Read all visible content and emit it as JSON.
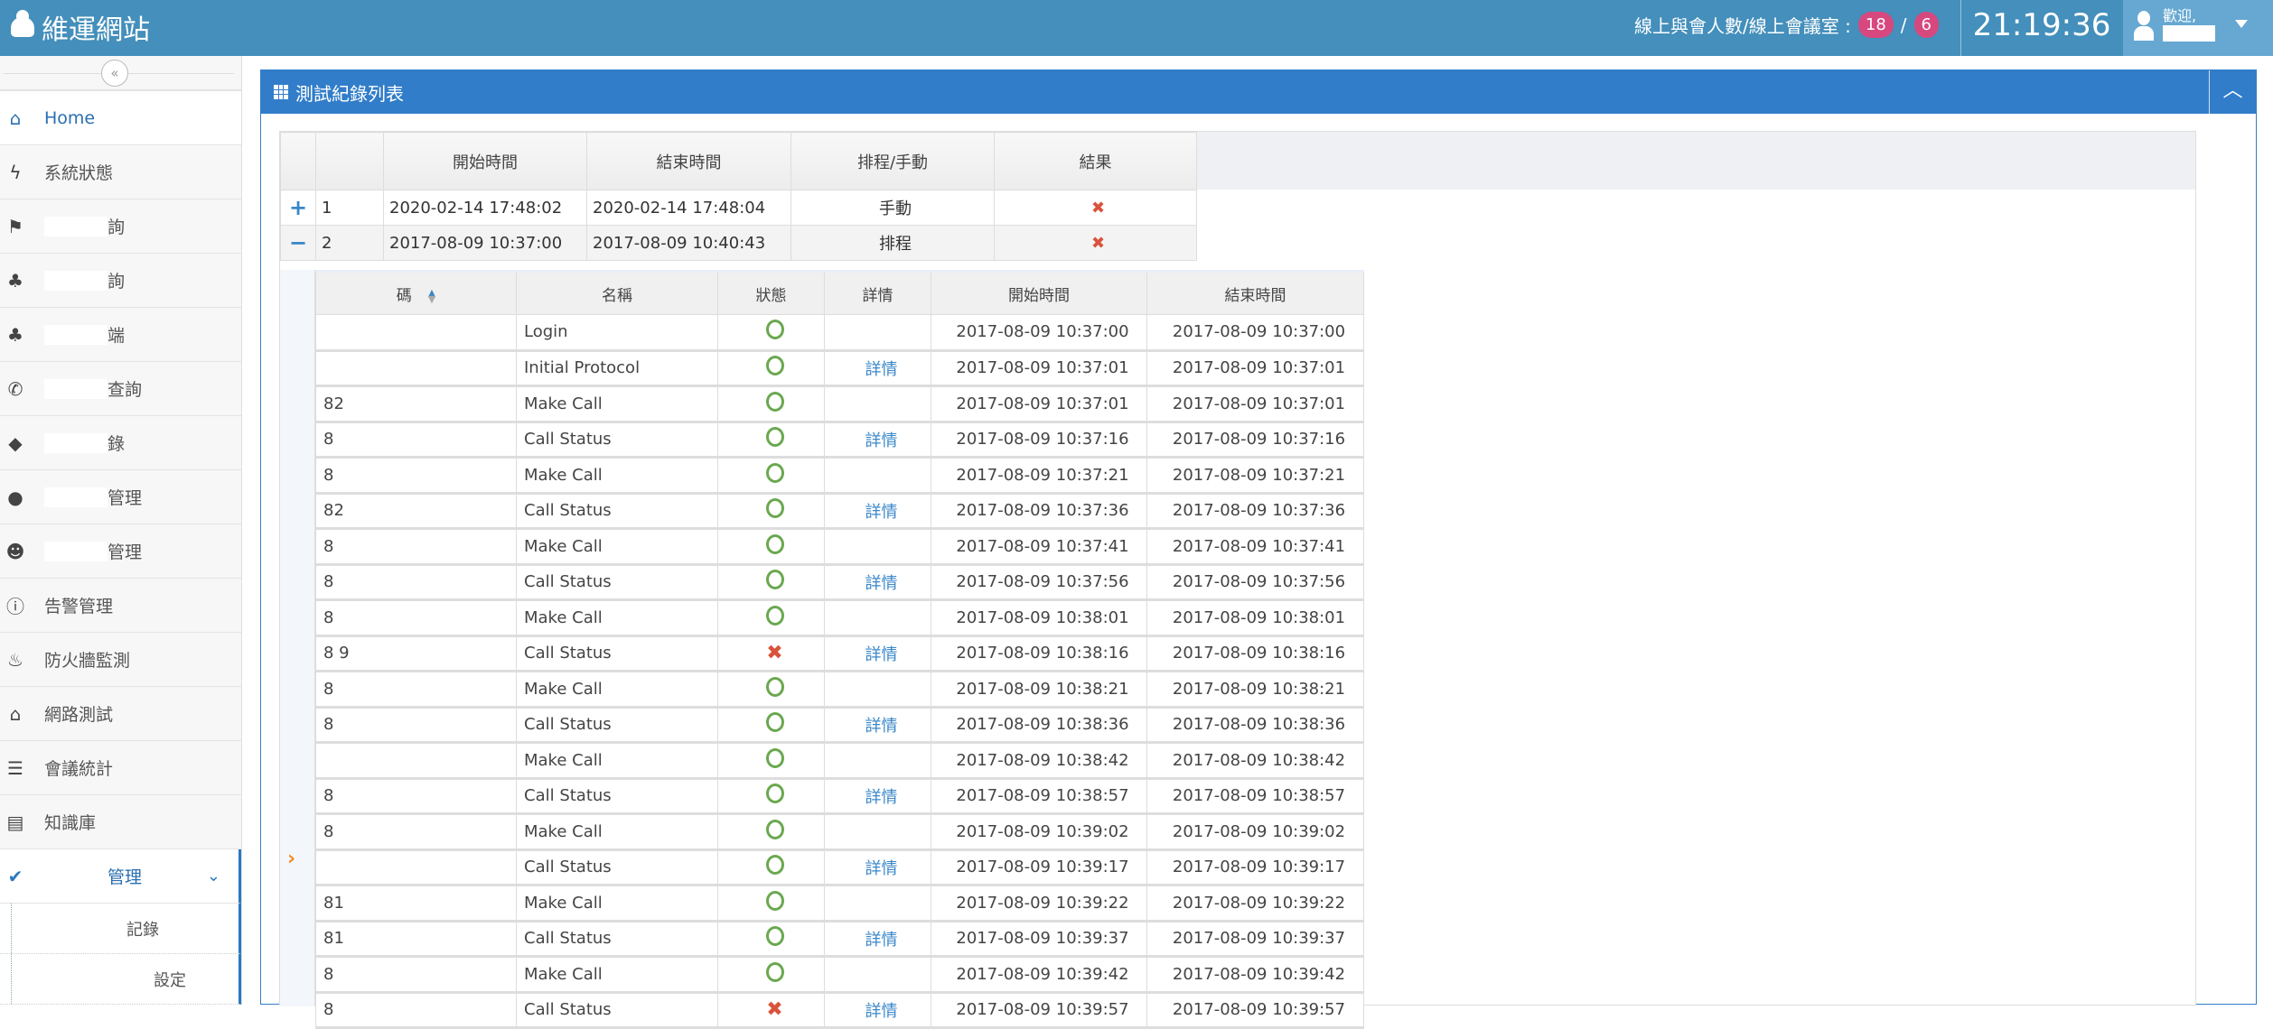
{
  "header": {
    "brand": "維運網站",
    "online_label": "線上與會人數/線上會議室 :",
    "participants": "18",
    "separator": "/",
    "rooms": "6",
    "clock": "21:19:36",
    "welcome": "歡迎,"
  },
  "sidebar": {
    "collapse": "«",
    "items": [
      {
        "label": "Home",
        "icon": "home-icon"
      },
      {
        "label": "系統狀態",
        "icon": "bolt-icon"
      },
      {
        "label": "詢",
        "icon": "flag-icon"
      },
      {
        "label": "詢",
        "icon": "sitemap-icon"
      },
      {
        "label": "端",
        "icon": "sitemap-icon"
      },
      {
        "label": "查詢",
        "icon": "phone-icon"
      },
      {
        "label": "錄",
        "icon": "tags-icon"
      },
      {
        "label": "管理",
        "icon": "user-icon"
      },
      {
        "label": "管理",
        "icon": "users-icon"
      },
      {
        "label": "告警管理",
        "icon": "info-icon"
      },
      {
        "label": "防火牆監測",
        "icon": "fire-icon"
      },
      {
        "label": "網路測試",
        "icon": "home-icon"
      },
      {
        "label": "會議統計",
        "icon": "bars-icon"
      },
      {
        "label": "知識庫",
        "icon": "book-icon"
      },
      {
        "label": "管理",
        "icon": "check-circle-icon"
      }
    ],
    "sub_items": [
      {
        "label": "記錄"
      },
      {
        "label": "設定"
      }
    ]
  },
  "panel": {
    "title": "測試紀錄列表",
    "toggle": "︿"
  },
  "outer_table": {
    "headers": [
      "",
      "",
      "開始時間",
      "結束時間",
      "排程/手動",
      "結果"
    ],
    "rows": [
      {
        "toggle": "+",
        "id": "1",
        "start": "2020-02-14 17:48:02",
        "end": "2020-02-14 17:48:04",
        "mode": "手動",
        "result": "✖"
      },
      {
        "toggle": "−",
        "id": "2",
        "start": "2017-08-09 10:37:00",
        "end": "2017-08-09 10:40:43",
        "mode": "排程",
        "result": "✖"
      }
    ]
  },
  "nested_table": {
    "headers": [
      "碼",
      "名稱",
      "狀態",
      "詳情",
      "開始時間",
      "結束時間"
    ],
    "detail_label": "詳情",
    "rows": [
      {
        "num": "",
        "name": "Login",
        "status": "ok",
        "detail": false,
        "start": "2017-08-09 10:37:00",
        "end": "2017-08-09 10:37:00"
      },
      {
        "num": "",
        "name": "Initial Protocol",
        "status": "ok",
        "detail": true,
        "start": "2017-08-09 10:37:01",
        "end": "2017-08-09 10:37:01"
      },
      {
        "num": "82",
        "name": "Make Call",
        "status": "ok",
        "detail": false,
        "start": "2017-08-09 10:37:01",
        "end": "2017-08-09 10:37:01"
      },
      {
        "num": "8",
        "name": "Call Status",
        "status": "ok",
        "detail": true,
        "start": "2017-08-09 10:37:16",
        "end": "2017-08-09 10:37:16"
      },
      {
        "num": "8",
        "name": "Make Call",
        "status": "ok",
        "detail": false,
        "start": "2017-08-09 10:37:21",
        "end": "2017-08-09 10:37:21"
      },
      {
        "num": "82",
        "name": "Call Status",
        "status": "ok",
        "detail": true,
        "start": "2017-08-09 10:37:36",
        "end": "2017-08-09 10:37:36"
      },
      {
        "num": "8",
        "name": "Make Call",
        "status": "ok",
        "detail": false,
        "start": "2017-08-09 10:37:41",
        "end": "2017-08-09 10:37:41"
      },
      {
        "num": "8",
        "name": "Call Status",
        "status": "ok",
        "detail": true,
        "start": "2017-08-09 10:37:56",
        "end": "2017-08-09 10:37:56"
      },
      {
        "num": "8",
        "name": "Make Call",
        "status": "ok",
        "detail": false,
        "start": "2017-08-09 10:38:01",
        "end": "2017-08-09 10:38:01"
      },
      {
        "num": "8 9",
        "name": "Call Status",
        "status": "fail",
        "detail": true,
        "start": "2017-08-09 10:38:16",
        "end": "2017-08-09 10:38:16"
      },
      {
        "num": "8",
        "name": "Make Call",
        "status": "ok",
        "detail": false,
        "start": "2017-08-09 10:38:21",
        "end": "2017-08-09 10:38:21"
      },
      {
        "num": "8",
        "name": "Call Status",
        "status": "ok",
        "detail": true,
        "start": "2017-08-09 10:38:36",
        "end": "2017-08-09 10:38:36"
      },
      {
        "num": "",
        "name": "Make Call",
        "status": "ok",
        "detail": false,
        "start": "2017-08-09 10:38:42",
        "end": "2017-08-09 10:38:42"
      },
      {
        "num": "8",
        "name": "Call Status",
        "status": "ok",
        "detail": true,
        "start": "2017-08-09 10:38:57",
        "end": "2017-08-09 10:38:57"
      },
      {
        "num": "8",
        "name": "Make Call",
        "status": "ok",
        "detail": false,
        "start": "2017-08-09 10:39:02",
        "end": "2017-08-09 10:39:02"
      },
      {
        "num": "",
        "name": "Call Status",
        "status": "ok",
        "detail": true,
        "start": "2017-08-09 10:39:17",
        "end": "2017-08-09 10:39:17"
      },
      {
        "num": "81",
        "name": "Make Call",
        "status": "ok",
        "detail": false,
        "start": "2017-08-09 10:39:22",
        "end": "2017-08-09 10:39:22"
      },
      {
        "num": "81",
        "name": "Call Status",
        "status": "ok",
        "detail": true,
        "start": "2017-08-09 10:39:37",
        "end": "2017-08-09 10:39:37"
      },
      {
        "num": "8",
        "name": "Make Call",
        "status": "ok",
        "detail": false,
        "start": "2017-08-09 10:39:42",
        "end": "2017-08-09 10:39:42"
      },
      {
        "num": "8",
        "name": "Call Status",
        "status": "fail",
        "detail": true,
        "start": "2017-08-09 10:39:57",
        "end": "2017-08-09 10:39:57"
      }
    ]
  },
  "colors": {
    "header": "#448fbb",
    "panel": "#317dc9",
    "badge": "#d6487e",
    "ok": "#6aa84f",
    "fail": "#d9533c",
    "pointer": "#f08a24"
  }
}
